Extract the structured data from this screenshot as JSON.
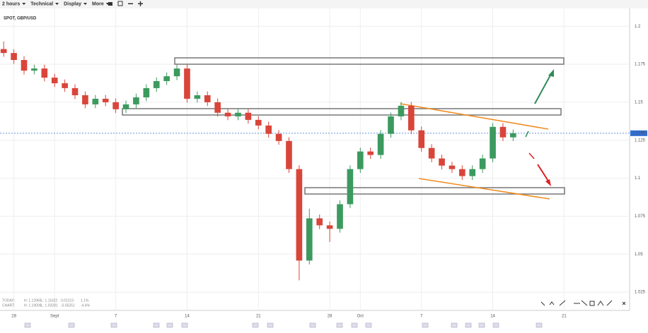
{
  "toolbar": [
    "2 hours",
    "Technical",
    "Display",
    "More"
  ],
  "stats": {
    "today": [
      "TODAY:",
      "H: 1.12965",
      "L: 1.11622",
      "0.01213",
      "1.1%"
    ],
    "chart": [
      "CHART:",
      "H: 1.19009",
      "L: 1.03281",
      "-0.05251",
      "-4.4%"
    ]
  },
  "chart_data": {
    "type": "candlestick",
    "title": "SPOT, GBP/USD",
    "categories": [
      null,
      "28",
      null,
      null,
      null,
      "Sept",
      null,
      null,
      null,
      null,
      null,
      "7",
      null,
      null,
      null,
      null,
      null,
      null,
      "14",
      null,
      null,
      null,
      null,
      null,
      null,
      "21",
      null,
      null,
      null,
      null,
      null,
      null,
      "28",
      null,
      null,
      "Oct",
      null,
      null,
      null,
      null,
      null,
      "7",
      null,
      null,
      null,
      null,
      null,
      null,
      "14",
      null,
      null,
      null,
      null,
      null,
      null,
      "21",
      null,
      null,
      null,
      null,
      null,
      null
    ],
    "open": [
      1.185,
      1.1824,
      1.1778,
      1.1708,
      1.1722,
      1.1662,
      1.1625,
      1.1593,
      1.1546,
      1.1486,
      1.1523,
      1.15,
      1.1454,
      1.1486,
      1.1532,
      1.1593,
      1.1639,
      1.1671,
      1.1722,
      1.1523,
      1.1546,
      1.15,
      1.1431,
      1.1407,
      1.1431,
      1.1384,
      1.1347,
      1.1292,
      1.1245,
      1.106,
      1.0458,
      1.0736,
      1.069,
      1.0667,
      1.0829,
      1.106,
      1.1176,
      1.1153,
      1.1292,
      1.1407,
      1.1477,
      1.1315,
      1.1199,
      1.113,
      1.1083,
      1.106,
      1.1014,
      1.106,
      1.113,
      1.1338,
      1.1269,
      null,
      null,
      null,
      null,
      null,
      null,
      null,
      null,
      null,
      null,
      null
    ],
    "high": [
      1.19,
      1.1849,
      1.1803,
      1.1747,
      1.1747,
      1.1687,
      1.165,
      1.1618,
      1.1571,
      1.1548,
      1.1548,
      1.1525,
      1.1511,
      1.1557,
      1.1618,
      1.1664,
      1.1696,
      1.1747,
      1.1747,
      1.1571,
      1.1571,
      1.1525,
      1.1456,
      1.1456,
      1.1456,
      1.1409,
      1.1372,
      1.1317,
      1.127,
      1.1085,
      1.08,
      1.0761,
      1.0715,
      1.0854,
      1.1085,
      1.1201,
      1.1201,
      1.1317,
      1.1432,
      1.1502,
      1.1502,
      1.134,
      1.1224,
      1.1155,
      1.1108,
      1.1085,
      1.1085,
      1.1155,
      1.1363,
      1.1363,
      1.1321,
      null,
      null,
      null,
      null,
      null,
      null,
      null,
      null,
      null,
      null,
      null
    ],
    "low": [
      1.1799,
      1.1753,
      1.1683,
      1.1683,
      1.1637,
      1.16,
      1.1568,
      1.1521,
      1.1461,
      1.1461,
      1.1475,
      1.1429,
      1.1429,
      1.1461,
      1.1507,
      1.1568,
      1.1614,
      1.1646,
      1.1498,
      1.1498,
      1.1475,
      1.1406,
      1.1382,
      1.1382,
      1.1359,
      1.1322,
      1.1267,
      1.122,
      1.1035,
      1.0328,
      1.0433,
      1.0665,
      1.058,
      1.0642,
      1.0804,
      1.1035,
      1.1128,
      1.1128,
      1.1267,
      1.1382,
      1.129,
      1.1174,
      1.1105,
      1.1058,
      1.1035,
      1.0989,
      1.0989,
      1.1035,
      1.1105,
      1.1244,
      1.1244,
      null,
      null,
      null,
      null,
      null,
      null,
      null,
      null,
      null,
      null,
      null
    ],
    "close": [
      1.1824,
      1.1778,
      1.1708,
      1.1722,
      1.1662,
      1.1625,
      1.1593,
      1.1546,
      1.1486,
      1.1523,
      1.15,
      1.1454,
      1.1486,
      1.1532,
      1.1593,
      1.1639,
      1.1671,
      1.1722,
      1.1523,
      1.1546,
      1.15,
      1.1431,
      1.1407,
      1.1431,
      1.1384,
      1.1347,
      1.1292,
      1.1245,
      1.106,
      1.0458,
      1.0736,
      1.069,
      1.0667,
      1.0829,
      1.106,
      1.1176,
      1.1153,
      1.1292,
      1.1407,
      1.1477,
      1.1315,
      1.1199,
      1.113,
      1.1083,
      1.106,
      1.1014,
      1.106,
      1.113,
      1.1338,
      1.1269,
      1.1296,
      null,
      null,
      null,
      null,
      null,
      null,
      null,
      null,
      null,
      null,
      null
    ],
    "up_color": "#3c9a5f",
    "down_color": "#d9453a",
    "ylim": [
      1.013,
      1.208
    ],
    "yticks": [
      1.2,
      1.175,
      1.15,
      1.125,
      1.1,
      1.075,
      1.05,
      1.025
    ],
    "grid": true,
    "last_price": 1.1296,
    "last_price_color": "#2f6fd6"
  }
}
